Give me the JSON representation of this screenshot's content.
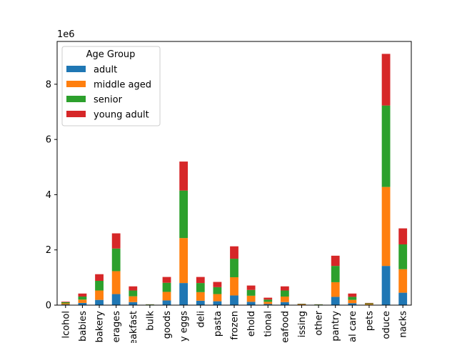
{
  "chart_data": {
    "type": "bar",
    "stacked": true,
    "x": [
      "alcohol",
      "babies",
      "bakery",
      "beverages",
      "breakfast",
      "bulk",
      "canned goods",
      "dairy eggs",
      "deli",
      "pasta",
      "frozen",
      "household",
      "international",
      "seafood",
      "missing",
      "other",
      "pantry",
      "personal care",
      "pets",
      "produce",
      "snacks"
    ],
    "x_tick_labels": [
      "lcohol",
      "babies",
      "bakery",
      "erages",
      "eakfast",
      "bulk",
      "goods",
      "y eggs",
      "deli",
      "pasta",
      "frozen",
      "ehold",
      "tional",
      "eafood",
      "issing",
      "other",
      "pantry",
      "al care",
      "pets",
      "oduce",
      "nacks"
    ],
    "series": [
      {
        "name": "adult",
        "color": "#1f77b4",
        "values": [
          0.025,
          0.08,
          0.19,
          0.4,
          0.11,
          0.005,
          0.17,
          0.8,
          0.16,
          0.14,
          0.35,
          0.12,
          0.04,
          0.11,
          0.01,
          0.005,
          0.3,
          0.07,
          0.015,
          1.42,
          0.45
        ]
      },
      {
        "name": "middle aged",
        "color": "#ff7f0e",
        "values": [
          0.04,
          0.12,
          0.34,
          0.83,
          0.21,
          0.01,
          0.31,
          1.63,
          0.31,
          0.26,
          0.66,
          0.22,
          0.08,
          0.2,
          0.015,
          0.01,
          0.53,
          0.12,
          0.025,
          2.86,
          0.85
        ]
      },
      {
        "name": "senior",
        "color": "#2ca02c",
        "values": [
          0.04,
          0.11,
          0.35,
          0.82,
          0.21,
          0.01,
          0.33,
          1.72,
          0.33,
          0.25,
          0.67,
          0.21,
          0.08,
          0.22,
          0.015,
          0.01,
          0.59,
          0.11,
          0.025,
          2.95,
          0.9
        ]
      },
      {
        "name": "young adult",
        "color": "#d62728",
        "values": [
          0.02,
          0.11,
          0.24,
          0.55,
          0.15,
          0.005,
          0.21,
          1.05,
          0.22,
          0.19,
          0.45,
          0.16,
          0.07,
          0.15,
          0.01,
          0.005,
          0.37,
          0.12,
          0.015,
          1.87,
          0.58
        ]
      }
    ],
    "y_ticks": [
      0,
      2,
      4,
      6,
      8
    ],
    "ylim": [
      0,
      9.55
    ],
    "y_scale_label": "1e6",
    "legend_title": "Age Group",
    "legend_position": "upper left",
    "grid": false
  }
}
